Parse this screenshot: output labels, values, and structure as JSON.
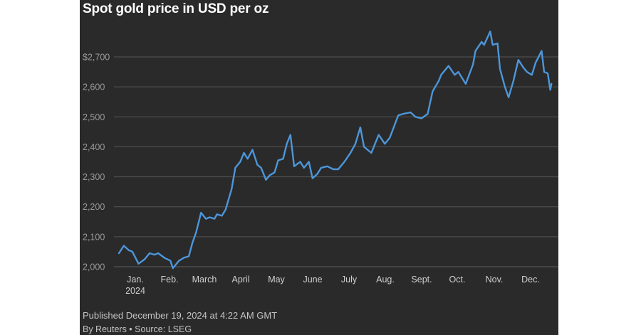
{
  "title": "Spot gold price in USD per oz",
  "footer": {
    "published": "Published December 19, 2024 at 4:22 AM GMT",
    "byline": "By Reuters • Source: LSEG"
  },
  "colors": {
    "background": "#2a2a2a",
    "line": "#4d96d9",
    "grid": "#555555"
  },
  "chart_data": {
    "type": "line",
    "title": "Spot gold price in USD per oz",
    "xlabel": "",
    "ylabel": "",
    "ylim": [
      2000,
      2800
    ],
    "y_ticks": [
      2000,
      2100,
      2200,
      2300,
      2400,
      2500,
      2600,
      2700
    ],
    "y_tick_labels": [
      "2,000",
      "2,100",
      "2,200",
      "2,300",
      "2,400",
      "2,500",
      "2,600",
      "$2,700"
    ],
    "x_tick_labels": [
      {
        "month": 1,
        "label": "Jan.",
        "sub": "2024"
      },
      {
        "month": 2,
        "label": "Feb.",
        "sub": ""
      },
      {
        "month": 3,
        "label": "March",
        "sub": ""
      },
      {
        "month": 4,
        "label": "April",
        "sub": ""
      },
      {
        "month": 5,
        "label": "May",
        "sub": ""
      },
      {
        "month": 6,
        "label": "June",
        "sub": ""
      },
      {
        "month": 7,
        "label": "July",
        "sub": ""
      },
      {
        "month": 8,
        "label": "Aug.",
        "sub": ""
      },
      {
        "month": 9,
        "label": "Sept.",
        "sub": ""
      },
      {
        "month": 10,
        "label": "Oct.",
        "sub": ""
      },
      {
        "month": 11,
        "label": "Nov.",
        "sub": ""
      },
      {
        "month": 12,
        "label": "Dec.",
        "sub": ""
      }
    ],
    "grid": true,
    "series": [
      {
        "x": [
          "2024-01-01",
          "2024-01-05",
          "2024-01-09",
          "2024-01-12",
          "2024-01-17",
          "2024-01-22",
          "2024-01-26",
          "2024-01-30",
          "2024-02-02",
          "2024-02-07",
          "2024-02-12",
          "2024-02-14",
          "2024-02-19",
          "2024-02-23",
          "2024-02-27",
          "2024-03-01",
          "2024-03-04",
          "2024-03-08",
          "2024-03-12",
          "2024-03-15",
          "2024-03-19",
          "2024-03-21",
          "2024-03-25",
          "2024-03-28",
          "2024-04-02",
          "2024-04-05",
          "2024-04-09",
          "2024-04-12",
          "2024-04-15",
          "2024-04-19",
          "2024-04-23",
          "2024-04-26",
          "2024-04-30",
          "2024-05-03",
          "2024-05-07",
          "2024-05-10",
          "2024-05-14",
          "2024-05-17",
          "2024-05-20",
          "2024-05-23",
          "2024-05-28",
          "2024-05-31",
          "2024-06-04",
          "2024-06-07",
          "2024-06-11",
          "2024-06-14",
          "2024-06-19",
          "2024-06-24",
          "2024-06-28",
          "2024-07-03",
          "2024-07-08",
          "2024-07-12",
          "2024-07-16",
          "2024-07-19",
          "2024-07-25",
          "2024-07-31",
          "2024-08-05",
          "2024-08-09",
          "2024-08-16",
          "2024-08-20",
          "2024-08-26",
          "2024-08-30",
          "2024-09-04",
          "2024-09-09",
          "2024-09-13",
          "2024-09-18",
          "2024-09-20",
          "2024-09-26",
          "2024-10-01",
          "2024-10-04",
          "2024-10-10",
          "2024-10-16",
          "2024-10-18",
          "2024-10-23",
          "2024-10-25",
          "2024-10-30",
          "2024-11-01",
          "2024-11-05",
          "2024-11-07",
          "2024-11-11",
          "2024-11-14",
          "2024-11-18",
          "2024-11-22",
          "2024-11-26",
          "2024-11-29",
          "2024-12-03",
          "2024-12-06",
          "2024-12-11",
          "2024-12-13",
          "2024-12-16",
          "2024-12-18",
          "2024-12-19"
        ],
        "y": [
          2045,
          2070,
          2055,
          2050,
          2010,
          2025,
          2045,
          2040,
          2045,
          2030,
          2020,
          1995,
          2020,
          2030,
          2035,
          2080,
          2115,
          2180,
          2160,
          2165,
          2160,
          2175,
          2170,
          2190,
          2260,
          2330,
          2350,
          2380,
          2360,
          2390,
          2340,
          2330,
          2290,
          2305,
          2315,
          2355,
          2360,
          2410,
          2440,
          2335,
          2350,
          2330,
          2350,
          2295,
          2310,
          2330,
          2335,
          2325,
          2325,
          2350,
          2380,
          2410,
          2465,
          2400,
          2380,
          2440,
          2410,
          2430,
          2505,
          2510,
          2515,
          2500,
          2495,
          2510,
          2585,
          2620,
          2640,
          2670,
          2640,
          2650,
          2610,
          2675,
          2720,
          2750,
          2740,
          2785,
          2740,
          2745,
          2660,
          2600,
          2565,
          2620,
          2690,
          2665,
          2650,
          2640,
          2680,
          2720,
          2650,
          2645,
          2590,
          2610
        ]
      }
    ]
  }
}
